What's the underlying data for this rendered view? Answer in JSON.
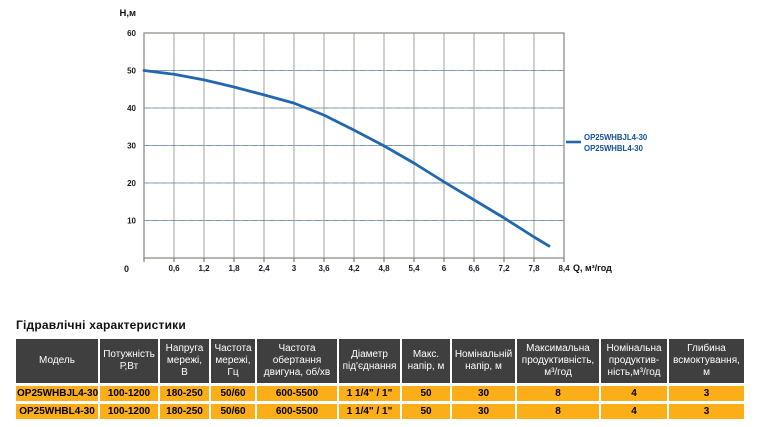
{
  "chart": {
    "y_axis_label": "H,м",
    "x_axis_label": "Q, м³/год",
    "origin_label": "0",
    "y_ticks": [
      "60",
      "50",
      "40",
      "30",
      "20",
      "10"
    ],
    "x_ticks": [
      "0,6",
      "1,2",
      "1,8",
      "2,4",
      "3",
      "3,6",
      "4,2",
      "4,8",
      "5,4",
      "6",
      "6,6",
      "7,2",
      "7,8",
      "8,4"
    ],
    "legend": [
      "OP25WHBJL4-30",
      "OP25WHBL4-30"
    ],
    "colors": {
      "curve": "#2267b0",
      "legend_text": "#12509e",
      "grid_gray": "#a3a39a",
      "grid_blue_dash": "#6b9ac7",
      "border": "#8f8f88",
      "tick_text": "#1a1a1a"
    }
  },
  "chart_data": {
    "type": "line",
    "title": "",
    "xlabel": "Q, м³/год",
    "ylabel": "H,м",
    "xlim": [
      0,
      8.4
    ],
    "ylim": [
      0,
      60
    ],
    "grid": true,
    "legend_position": "right",
    "series": [
      {
        "name": "OP25WHBJL4-30 / OP25WHBL4-30",
        "x": [
          0,
          0.6,
          1.2,
          1.8,
          2.4,
          3,
          3.6,
          4.2,
          4.8,
          5.4,
          6,
          6.6,
          7.2,
          7.8,
          8.1
        ],
        "y": [
          50,
          49,
          47.5,
          45.6,
          43.5,
          41.3,
          38.1,
          34.1,
          29.9,
          25.3,
          20.3,
          15.5,
          10.7,
          5.6,
          3.2
        ]
      }
    ]
  },
  "table": {
    "title": "Гідравлічні характеристики",
    "headers": [
      "Модель",
      "Потужність\nР,Вт",
      "Напруга\nмережі,\nВ",
      "Частота\nмережі,\nГц",
      "Частота\nобертання\nдвигуна, об/хв",
      "Діаметр\nпід'єднання",
      "Макс.\nнапір, м",
      "Номінальній\nнапір, м",
      "Максимальна\nпродуктивність,\nм³/год",
      "Номінальна\nпродуктив-\nність,м³/год",
      "Глибина\nвсмоктування,\nм"
    ],
    "rows": [
      [
        "OP25WHBJL4-30",
        "100-1200",
        "180-250",
        "50/60",
        "600-5500",
        "1 1/4\" / 1\"",
        "50",
        "30",
        "8",
        "4",
        "3"
      ],
      [
        "OP25WHBL4-30",
        "100-1200",
        "180-250",
        "50/60",
        "600-5500",
        "1 1/4\" / 1\"",
        "50",
        "30",
        "8",
        "4",
        "3"
      ]
    ],
    "colors": {
      "header_bg": "#3f3f3f",
      "header_text": "#ffffff",
      "row_bg": "#fbae17",
      "row_text": "#000000"
    }
  }
}
